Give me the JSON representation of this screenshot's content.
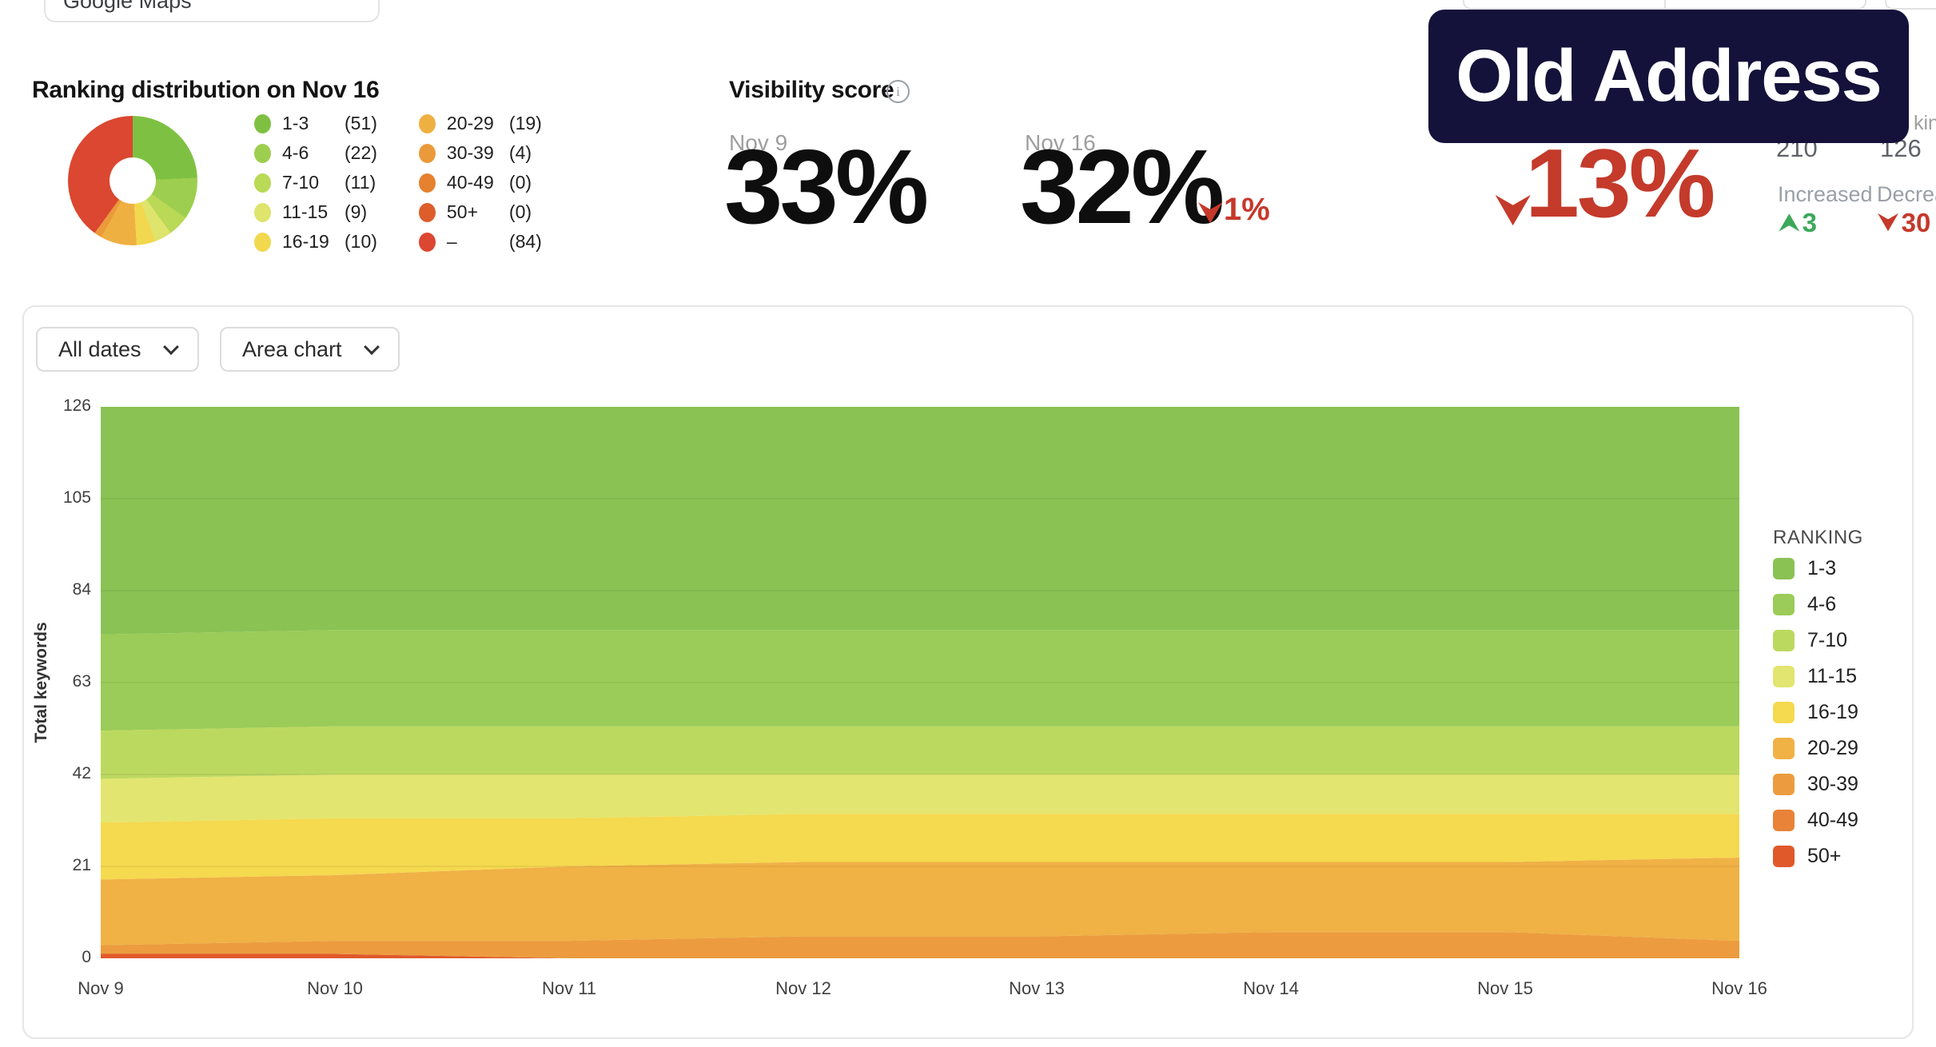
{
  "top_left_control": {
    "label": "Google Maps"
  },
  "ranking_distribution": {
    "title": "Ranking distribution on Nov 16",
    "total_keywords": 210,
    "buckets": [
      {
        "label": "1-3",
        "count": 51,
        "color": "#7EC142"
      },
      {
        "label": "4-6",
        "count": 22,
        "color": "#9ECE4F"
      },
      {
        "label": "7-10",
        "count": 11,
        "color": "#B9D957"
      },
      {
        "label": "11-15",
        "count": 9,
        "color": "#DEE46C"
      },
      {
        "label": "16-19",
        "count": 10,
        "color": "#F2D84E"
      },
      {
        "label": "20-29",
        "count": 19,
        "color": "#EFB042"
      },
      {
        "label": "30-39",
        "count": 4,
        "color": "#EB9A3B"
      },
      {
        "label": "40-49",
        "count": 0,
        "color": "#E5812F"
      },
      {
        "label": "50+",
        "count": 0,
        "color": "#DD5E2B"
      },
      {
        "label": "–",
        "count": 84,
        "color": "#DB4730"
      }
    ]
  },
  "visibility": {
    "title": "Visibility score",
    "points": [
      {
        "date": "Nov 9",
        "score": "33%"
      },
      {
        "date": "Nov 16",
        "score": "32%"
      }
    ],
    "delta": "1%",
    "delta_direction": "down"
  },
  "overlay": {
    "badge_text": "Old Address",
    "badge_color": "#14123A"
  },
  "big_delta": {
    "value": "13%",
    "direction": "down",
    "color": "#C43A2B"
  },
  "stats": {
    "label_fragment": "king",
    "value_left": "210",
    "value_right": "126",
    "increased_label": "Increased",
    "increased_value": "3",
    "decreased_label": "Decreased",
    "decreased_value": "30",
    "increase_color": "#3CA85B",
    "decrease_color": "#C5392B"
  },
  "controls": {
    "date_filter": "All dates",
    "chart_type": "Area chart"
  },
  "chart_data": {
    "type": "area",
    "stacked": true,
    "x": [
      "Nov 9",
      "Nov 10",
      "Nov 11",
      "Nov 12",
      "Nov 13",
      "Nov 14",
      "Nov 15",
      "Nov 16"
    ],
    "ylabel": "Total keywords",
    "ylim": [
      0,
      126
    ],
    "yticks": [
      0,
      21,
      42,
      63,
      84,
      105,
      126
    ],
    "grid": "faint-horizontal",
    "legend_title": "RANKING",
    "legend_position": "right",
    "stack_order_bottom_to_top": [
      "50+",
      "40-49",
      "30-39",
      "20-29",
      "16-19",
      "11-15",
      "7-10",
      "4-6",
      "1-3"
    ],
    "series": [
      {
        "name": "1-3",
        "color": "#8AC254",
        "values": [
          52,
          51,
          51,
          51,
          51,
          51,
          51,
          51
        ]
      },
      {
        "name": "4-6",
        "color": "#9BCB58",
        "values": [
          22,
          22,
          22,
          22,
          22,
          22,
          22,
          22
        ]
      },
      {
        "name": "7-10",
        "color": "#BCD95F",
        "values": [
          11,
          11,
          11,
          11,
          11,
          11,
          11,
          11
        ]
      },
      {
        "name": "11-15",
        "color": "#E2E56F",
        "values": [
          10,
          10,
          10,
          9,
          9,
          9,
          9,
          9
        ]
      },
      {
        "name": "16-19",
        "color": "#F5D94F",
        "values": [
          13,
          13,
          11,
          11,
          11,
          11,
          11,
          10
        ]
      },
      {
        "name": "20-29",
        "color": "#F0B145",
        "values": [
          15,
          15,
          17,
          17,
          17,
          16,
          16,
          19
        ]
      },
      {
        "name": "30-39",
        "color": "#EC9C3E",
        "values": [
          2,
          3,
          4,
          5,
          5,
          6,
          6,
          4
        ]
      },
      {
        "name": "40-49",
        "color": "#E88338",
        "values": [
          0,
          0,
          0,
          0,
          0,
          0,
          0,
          0
        ]
      },
      {
        "name": "50+",
        "color": "#E0592B",
        "values": [
          1,
          1,
          0,
          0,
          0,
          0,
          0,
          0
        ]
      }
    ]
  }
}
